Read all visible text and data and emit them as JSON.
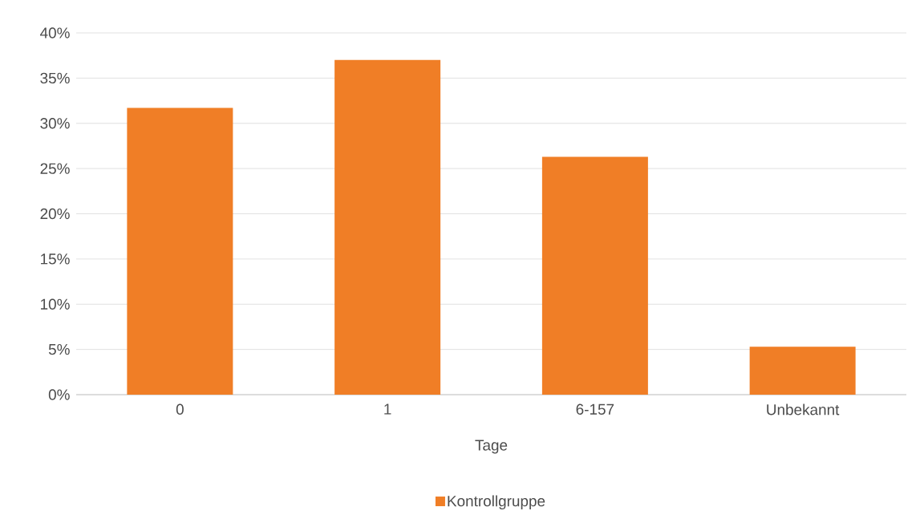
{
  "chart_data": {
    "type": "bar",
    "xlabel": "Tage",
    "categories": [
      "0",
      "1",
      "6-157",
      "Unbekannt"
    ],
    "series": [
      {
        "name": "Kontrollgruppe",
        "color": "#f07e26",
        "values": [
          31.7,
          37.0,
          26.3,
          5.3
        ]
      }
    ],
    "ylim": [
      0,
      40
    ],
    "yticks": [
      {
        "value": 0,
        "label": "0%"
      },
      {
        "value": 5,
        "label": "5%"
      },
      {
        "value": 10,
        "label": "10%"
      },
      {
        "value": 15,
        "label": "15%"
      },
      {
        "value": 20,
        "label": "20%"
      },
      {
        "value": 25,
        "label": "25%"
      },
      {
        "value": 30,
        "label": "30%"
      },
      {
        "value": 35,
        "label": "35%"
      },
      {
        "value": 40,
        "label": "40%"
      }
    ],
    "grid": "y",
    "legend": "bottom"
  }
}
